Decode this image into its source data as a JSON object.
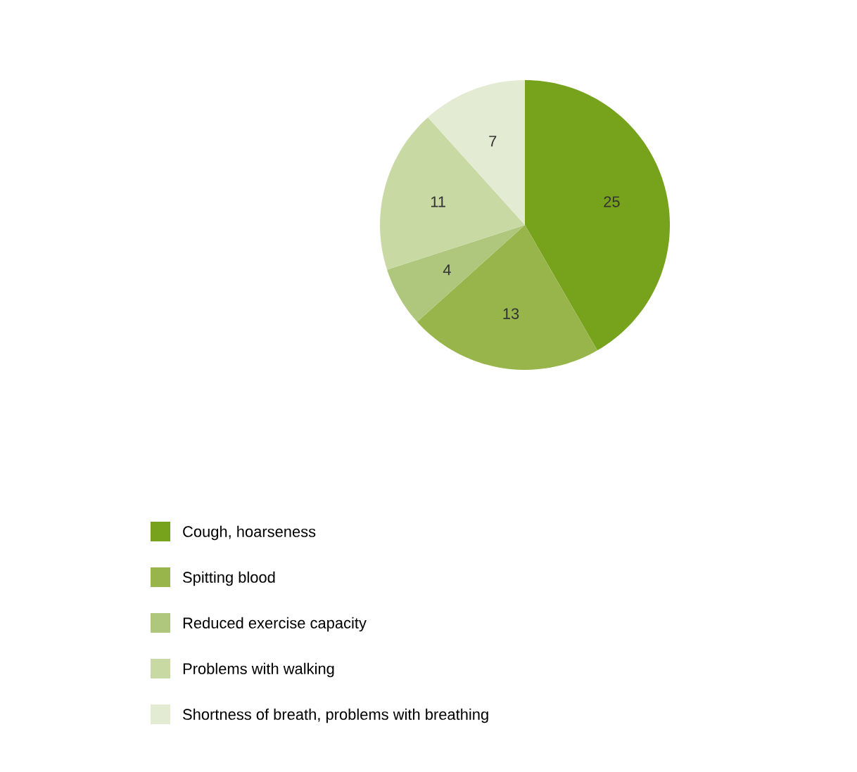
{
  "chart_data": {
    "type": "pie",
    "categories": [
      "Cough, hoarseness",
      "Spitting blood",
      "Reduced exercise capacity",
      "Problems with walking",
      "Shortness of breath, problems with breathing"
    ],
    "values": [
      25,
      13,
      4,
      11,
      7
    ],
    "colors": [
      "#77a21c",
      "#97b54b",
      "#afc77c",
      "#c9d9a3",
      "#e3ebd3"
    ],
    "data_labels": true,
    "legend": "bottom"
  }
}
